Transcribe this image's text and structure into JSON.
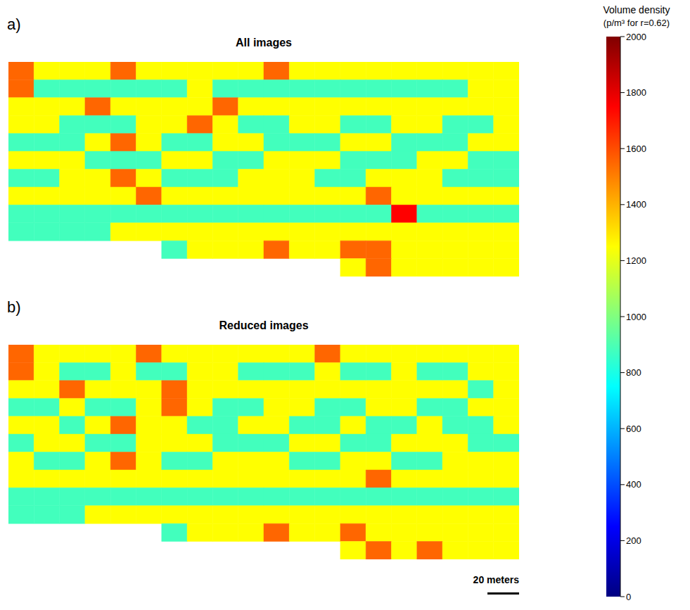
{
  "chart_data": [
    {
      "type": "heatmap",
      "panel": "a)",
      "title": "All images",
      "xlim": [
        0,
        320
      ],
      "ylim": [
        0,
        134
      ],
      "tick_labels": false,
      "cells": [
        [
          1550,
          1250,
          1250,
          1250,
          1550,
          1250,
          1250,
          1250,
          1250,
          1250,
          1550,
          1250,
          1250,
          1250,
          1250,
          1250,
          1250,
          1250,
          1250,
          1250
        ],
        [
          1550,
          880,
          880,
          880,
          880,
          880,
          880,
          1250,
          880,
          880,
          880,
          880,
          880,
          880,
          880,
          880,
          880,
          880,
          1250,
          1250
        ],
        [
          1250,
          1250,
          1250,
          1550,
          1250,
          1250,
          1250,
          1250,
          1550,
          1250,
          1250,
          1250,
          1250,
          1250,
          1250,
          1250,
          1250,
          1250,
          1250,
          1250
        ],
        [
          1250,
          1250,
          880,
          880,
          880,
          1250,
          1250,
          1550,
          1250,
          880,
          880,
          1250,
          1250,
          880,
          880,
          1250,
          1250,
          880,
          880,
          1250
        ],
        [
          880,
          880,
          880,
          1250,
          1550,
          1250,
          880,
          880,
          1250,
          1250,
          880,
          880,
          880,
          1250,
          1250,
          880,
          880,
          880,
          1250,
          1250
        ],
        [
          1250,
          1250,
          1250,
          880,
          880,
          880,
          1250,
          1250,
          880,
          880,
          1250,
          1250,
          1250,
          880,
          880,
          880,
          1250,
          1250,
          880,
          880
        ],
        [
          880,
          880,
          1250,
          1250,
          1550,
          1250,
          880,
          880,
          880,
          1250,
          1250,
          1250,
          880,
          880,
          1250,
          1250,
          1250,
          880,
          880,
          880
        ],
        [
          1250,
          1250,
          1250,
          1250,
          1250,
          1550,
          1250,
          1250,
          1250,
          1250,
          1250,
          1250,
          1250,
          1250,
          1550,
          1250,
          1250,
          1250,
          1250,
          1250
        ],
        [
          880,
          880,
          880,
          880,
          880,
          880,
          880,
          880,
          880,
          880,
          880,
          880,
          880,
          880,
          880,
          1750,
          880,
          880,
          880,
          880
        ],
        [
          880,
          880,
          880,
          880,
          1250,
          1250,
          1250,
          1250,
          1250,
          1250,
          1250,
          1250,
          1250,
          1250,
          1250,
          1250,
          1250,
          1250,
          1250,
          1250
        ],
        [
          null,
          null,
          null,
          null,
          null,
          null,
          880,
          1250,
          1250,
          1250,
          1550,
          1250,
          1250,
          1550,
          1550,
          1250,
          1250,
          1250,
          1250,
          1250
        ],
        [
          null,
          null,
          null,
          null,
          null,
          null,
          null,
          null,
          null,
          null,
          null,
          null,
          null,
          1250,
          1550,
          1250,
          1250,
          1250,
          1250,
          1250
        ]
      ]
    },
    {
      "type": "heatmap",
      "panel": "b)",
      "title": "Reduced images",
      "xlim": [
        0,
        320
      ],
      "ylim": [
        0,
        134
      ],
      "tick_labels": false,
      "cells": [
        [
          1550,
          1250,
          1250,
          1250,
          1250,
          1550,
          1250,
          1250,
          1250,
          1250,
          1250,
          1250,
          1550,
          1250,
          1250,
          1250,
          1250,
          1250,
          1250,
          1250
        ],
        [
          1550,
          1250,
          880,
          880,
          1250,
          880,
          880,
          1250,
          1250,
          880,
          880,
          880,
          1250,
          880,
          880,
          1250,
          880,
          880,
          1250,
          1250
        ],
        [
          1250,
          1250,
          1550,
          1250,
          1250,
          1250,
          1550,
          1250,
          1250,
          1250,
          1250,
          1250,
          1250,
          1250,
          1250,
          1250,
          1250,
          1250,
          880,
          1250
        ],
        [
          880,
          880,
          1250,
          880,
          880,
          1250,
          1550,
          1250,
          880,
          880,
          1250,
          1250,
          880,
          880,
          1250,
          1250,
          880,
          880,
          1250,
          1250
        ],
        [
          1250,
          1250,
          880,
          1250,
          1550,
          1250,
          1250,
          880,
          880,
          1250,
          1250,
          880,
          880,
          1250,
          880,
          880,
          1250,
          880,
          880,
          1250
        ],
        [
          880,
          1250,
          1250,
          880,
          880,
          1250,
          1250,
          1250,
          880,
          880,
          880,
          1250,
          1250,
          880,
          880,
          1250,
          1250,
          1250,
          880,
          880
        ],
        [
          1250,
          880,
          880,
          1250,
          1550,
          1250,
          880,
          880,
          1250,
          1250,
          1250,
          880,
          880,
          1250,
          1250,
          880,
          880,
          1250,
          1250,
          1250
        ],
        [
          1250,
          1250,
          1250,
          1250,
          1250,
          1250,
          1250,
          1250,
          1250,
          1250,
          1250,
          1250,
          1250,
          1250,
          1550,
          1250,
          1250,
          1250,
          1250,
          1250
        ],
        [
          880,
          880,
          880,
          880,
          880,
          880,
          880,
          880,
          880,
          880,
          880,
          880,
          880,
          880,
          880,
          880,
          880,
          880,
          880,
          880
        ],
        [
          880,
          880,
          880,
          1250,
          1250,
          1250,
          1250,
          1250,
          1250,
          1250,
          1250,
          1250,
          1250,
          1250,
          1250,
          1250,
          1250,
          1250,
          1250,
          1250
        ],
        [
          null,
          null,
          null,
          null,
          null,
          null,
          880,
          1250,
          1250,
          1250,
          1550,
          1250,
          1250,
          1550,
          1250,
          1250,
          1250,
          1250,
          1250,
          1250
        ],
        [
          null,
          null,
          null,
          null,
          null,
          null,
          null,
          null,
          null,
          null,
          null,
          null,
          null,
          1250,
          1550,
          1250,
          1550,
          1250,
          1250,
          1250
        ]
      ]
    }
  ],
  "color_bar": {
    "title": "Volume density",
    "unit": "(p/m³ for r=0.62)",
    "range": [
      0,
      2000
    ],
    "ticks": [
      0,
      200,
      400,
      600,
      800,
      1000,
      1200,
      1400,
      1600,
      1800,
      2000
    ]
  },
  "scale_bar": {
    "length": 20,
    "label": "20 meters"
  }
}
